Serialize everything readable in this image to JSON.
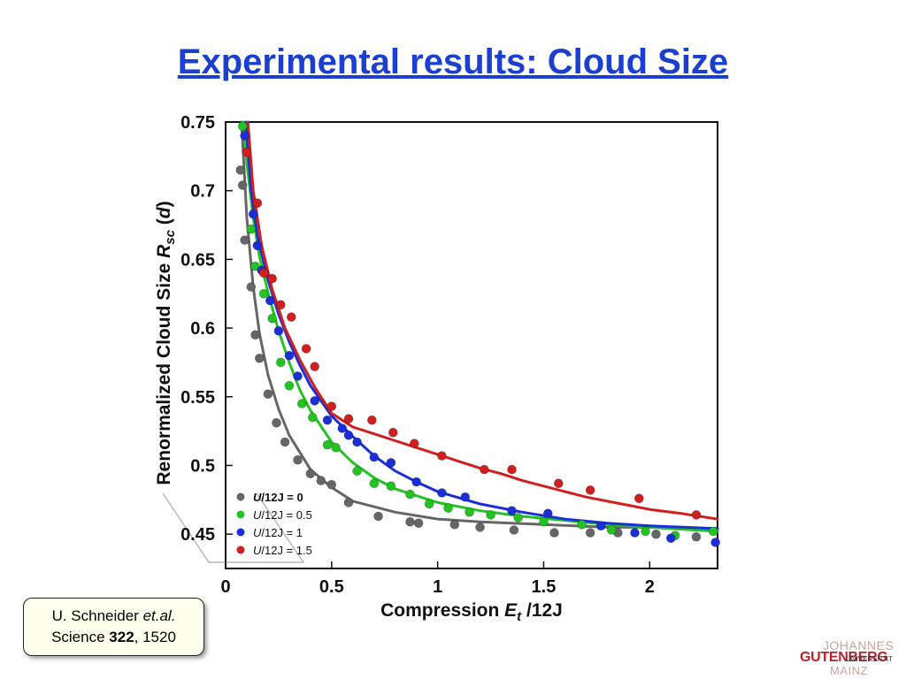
{
  "slide": {
    "title": "Experimental results: Cloud Size"
  },
  "citation": {
    "author": "U. Schneider",
    "etal": "et.al.",
    "journal": "Science",
    "volume": "322",
    "pages": ", 1520"
  },
  "logo": {
    "line1": "JOHANNES",
    "line2": "GUTENBERG",
    "line3": "UNIVERSITÄT",
    "line4": "MAINZ"
  },
  "chart_data": {
    "type": "scatter",
    "title": "",
    "xlabel": "Compression E_t /12J",
    "ylabel": "Renormalized Cloud Size R_sc (d)",
    "xlim": [
      0,
      2.32
    ],
    "ylim": [
      0.425,
      0.75
    ],
    "x_ticks": [
      {
        "v": 0,
        "label": "0"
      },
      {
        "v": 0.5,
        "label": "0.5"
      },
      {
        "v": 1,
        "label": "1"
      },
      {
        "v": 1.5,
        "label": "1.5"
      },
      {
        "v": 2,
        "label": "2"
      }
    ],
    "y_ticks": [
      {
        "v": 0.75,
        "label": "0.75"
      },
      {
        "v": 0.7,
        "label": "0.7"
      },
      {
        "v": 0.65,
        "label": "0.65"
      },
      {
        "v": 0.6,
        "label": "0.6"
      },
      {
        "v": 0.55,
        "label": "0.55"
      },
      {
        "v": 0.5,
        "label": "0.5"
      },
      {
        "v": 0.45,
        "label": "0.45"
      }
    ],
    "grid": false,
    "legend_position": "bottom-left",
    "series": [
      {
        "name": "U/12J = 0",
        "legend_italic": "U",
        "legend_rest": "/12J = 0",
        "color": "#666666",
        "points": [
          [
            0.07,
            0.715
          ],
          [
            0.08,
            0.704
          ],
          [
            0.09,
            0.664
          ],
          [
            0.12,
            0.63
          ],
          [
            0.14,
            0.595
          ],
          [
            0.16,
            0.578
          ],
          [
            0.2,
            0.552
          ],
          [
            0.24,
            0.531
          ],
          [
            0.28,
            0.517
          ],
          [
            0.34,
            0.504
          ],
          [
            0.4,
            0.494
          ],
          [
            0.45,
            0.489
          ],
          [
            0.5,
            0.486
          ],
          [
            0.58,
            0.473
          ],
          [
            0.72,
            0.463
          ],
          [
            0.87,
            0.459
          ],
          [
            0.91,
            0.458
          ],
          [
            1.08,
            0.457
          ],
          [
            1.2,
            0.455
          ],
          [
            1.36,
            0.453
          ],
          [
            1.55,
            0.451
          ],
          [
            1.72,
            0.451
          ],
          [
            1.85,
            0.451
          ],
          [
            2.03,
            0.45
          ],
          [
            2.22,
            0.448
          ]
        ],
        "fit": [
          [
            0.075,
            0.75
          ],
          [
            0.1,
            0.68
          ],
          [
            0.13,
            0.63
          ],
          [
            0.16,
            0.596
          ],
          [
            0.2,
            0.566
          ],
          [
            0.25,
            0.541
          ],
          [
            0.3,
            0.522
          ],
          [
            0.4,
            0.497
          ],
          [
            0.5,
            0.484
          ],
          [
            0.6,
            0.474
          ],
          [
            0.8,
            0.466
          ],
          [
            1.0,
            0.461
          ],
          [
            1.2,
            0.459
          ],
          [
            1.5,
            0.457
          ],
          [
            1.8,
            0.455
          ],
          [
            2.0,
            0.455
          ],
          [
            2.32,
            0.454
          ]
        ]
      },
      {
        "name": "U/12J = 0.5",
        "legend_italic": "U",
        "legend_rest": "/12J = 0.5",
        "color": "#22c322",
        "points": [
          [
            0.08,
            0.747
          ],
          [
            0.12,
            0.672
          ],
          [
            0.14,
            0.645
          ],
          [
            0.18,
            0.625
          ],
          [
            0.22,
            0.607
          ],
          [
            0.26,
            0.575
          ],
          [
            0.3,
            0.558
          ],
          [
            0.36,
            0.545
          ],
          [
            0.41,
            0.535
          ],
          [
            0.48,
            0.515
          ],
          [
            0.52,
            0.513
          ],
          [
            0.62,
            0.496
          ],
          [
            0.7,
            0.487
          ],
          [
            0.78,
            0.485
          ],
          [
            0.87,
            0.479
          ],
          [
            0.96,
            0.472
          ],
          [
            1.05,
            0.469
          ],
          [
            1.15,
            0.466
          ],
          [
            1.25,
            0.464
          ],
          [
            1.38,
            0.462
          ],
          [
            1.5,
            0.459
          ],
          [
            1.68,
            0.457
          ],
          [
            1.82,
            0.453
          ],
          [
            1.98,
            0.452
          ],
          [
            2.12,
            0.449
          ],
          [
            2.3,
            0.452
          ]
        ],
        "fit": [
          [
            0.085,
            0.75
          ],
          [
            0.1,
            0.72
          ],
          [
            0.13,
            0.68
          ],
          [
            0.16,
            0.652
          ],
          [
            0.2,
            0.626
          ],
          [
            0.25,
            0.598
          ],
          [
            0.3,
            0.575
          ],
          [
            0.35,
            0.555
          ],
          [
            0.4,
            0.54
          ],
          [
            0.5,
            0.517
          ],
          [
            0.6,
            0.502
          ],
          [
            0.7,
            0.491
          ],
          [
            0.8,
            0.483
          ],
          [
            1.0,
            0.473
          ],
          [
            1.2,
            0.467
          ],
          [
            1.4,
            0.463
          ],
          [
            1.6,
            0.46
          ],
          [
            1.8,
            0.457
          ],
          [
            2.0,
            0.455
          ],
          [
            2.32,
            0.452
          ]
        ]
      },
      {
        "name": "U/12J = 1",
        "legend_italic": "U",
        "legend_rest": "/12J = 1",
        "color": "#1a2fd8",
        "points": [
          [
            0.09,
            0.74
          ],
          [
            0.13,
            0.683
          ],
          [
            0.15,
            0.66
          ],
          [
            0.17,
            0.642
          ],
          [
            0.21,
            0.62
          ],
          [
            0.25,
            0.598
          ],
          [
            0.3,
            0.58
          ],
          [
            0.34,
            0.565
          ],
          [
            0.42,
            0.547
          ],
          [
            0.48,
            0.533
          ],
          [
            0.55,
            0.527
          ],
          [
            0.58,
            0.522
          ],
          [
            0.62,
            0.517
          ],
          [
            0.7,
            0.506
          ],
          [
            0.78,
            0.502
          ],
          [
            0.9,
            0.488
          ],
          [
            1.02,
            0.48
          ],
          [
            1.13,
            0.477
          ],
          [
            1.35,
            0.467
          ],
          [
            1.52,
            0.465
          ],
          [
            1.77,
            0.456
          ],
          [
            1.93,
            0.451
          ],
          [
            2.1,
            0.447
          ],
          [
            2.31,
            0.444
          ]
        ],
        "fit": [
          [
            0.095,
            0.75
          ],
          [
            0.12,
            0.7
          ],
          [
            0.15,
            0.667
          ],
          [
            0.2,
            0.635
          ],
          [
            0.25,
            0.61
          ],
          [
            0.3,
            0.59
          ],
          [
            0.35,
            0.573
          ],
          [
            0.4,
            0.558
          ],
          [
            0.5,
            0.536
          ],
          [
            0.6,
            0.521
          ],
          [
            0.7,
            0.507
          ],
          [
            0.8,
            0.496
          ],
          [
            0.9,
            0.488
          ],
          [
            1.0,
            0.481
          ],
          [
            1.2,
            0.472
          ],
          [
            1.4,
            0.466
          ],
          [
            1.6,
            0.461
          ],
          [
            1.8,
            0.458
          ],
          [
            2.0,
            0.456
          ],
          [
            2.32,
            0.454
          ]
        ]
      },
      {
        "name": "U/12J = 1.5",
        "legend_italic": "U",
        "legend_rest": "/12J = 1.5",
        "color": "#d11f1f",
        "points": [
          [
            0.1,
            0.728
          ],
          [
            0.15,
            0.691
          ],
          [
            0.18,
            0.64
          ],
          [
            0.22,
            0.636
          ],
          [
            0.26,
            0.617
          ],
          [
            0.31,
            0.608
          ],
          [
            0.38,
            0.585
          ],
          [
            0.42,
            0.572
          ],
          [
            0.5,
            0.543
          ],
          [
            0.58,
            0.534
          ],
          [
            0.69,
            0.533
          ],
          [
            0.79,
            0.524
          ],
          [
            0.89,
            0.516
          ],
          [
            1.02,
            0.507
          ],
          [
            1.22,
            0.497
          ],
          [
            1.35,
            0.497
          ],
          [
            1.57,
            0.487
          ],
          [
            1.72,
            0.482
          ],
          [
            1.95,
            0.476
          ],
          [
            2.22,
            0.464
          ]
        ],
        "fit": [
          [
            0.105,
            0.75
          ],
          [
            0.13,
            0.7
          ],
          [
            0.17,
            0.66
          ],
          [
            0.22,
            0.628
          ],
          [
            0.28,
            0.6
          ],
          [
            0.35,
            0.577
          ],
          [
            0.42,
            0.557
          ],
          [
            0.5,
            0.538
          ],
          [
            0.6,
            0.528
          ],
          [
            0.7,
            0.523
          ],
          [
            0.8,
            0.518
          ],
          [
            0.9,
            0.513
          ],
          [
            1.0,
            0.508
          ],
          [
            1.1,
            0.503
          ],
          [
            1.2,
            0.498
          ],
          [
            1.3,
            0.494
          ],
          [
            1.4,
            0.489
          ],
          [
            1.5,
            0.485
          ],
          [
            1.6,
            0.481
          ],
          [
            1.7,
            0.477
          ],
          [
            1.8,
            0.474
          ],
          [
            1.9,
            0.471
          ],
          [
            2.0,
            0.468
          ],
          [
            2.15,
            0.465
          ],
          [
            2.32,
            0.461
          ]
        ]
      }
    ]
  }
}
